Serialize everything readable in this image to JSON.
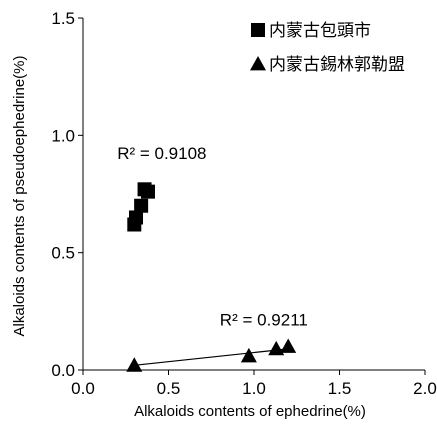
{
  "chart_data": {
    "type": "scatter",
    "xlabel": "Alkaloids contents of ephedrine(%)",
    "ylabel": "Alkaloids contents of pseudoephedrine(%)",
    "xlim": [
      0,
      2.0
    ],
    "ylim": [
      0,
      1.5
    ],
    "xticks": [
      "0.0",
      "0.5",
      "1.0",
      "1.5",
      "2.0"
    ],
    "yticks": [
      "0.0",
      "0.5",
      "1.0",
      "1.5"
    ],
    "grid": false,
    "legend_position": "top-right",
    "series": [
      {
        "name": "内蒙古包頭市",
        "marker": "square",
        "color": "#000000",
        "points": [
          {
            "x": 0.3,
            "y": 0.62
          },
          {
            "x": 0.31,
            "y": 0.65
          },
          {
            "x": 0.34,
            "y": 0.7
          },
          {
            "x": 0.36,
            "y": 0.77
          },
          {
            "x": 0.38,
            "y": 0.76
          }
        ],
        "r2_label": "R² = 0.9108",
        "r2_anchor": {
          "x": 0.2,
          "y": 0.9
        },
        "trendline": false
      },
      {
        "name": "内蒙古錫林郭勒盟",
        "marker": "triangle",
        "color": "#000000",
        "points": [
          {
            "x": 0.3,
            "y": 0.02
          },
          {
            "x": 0.97,
            "y": 0.06
          },
          {
            "x": 1.13,
            "y": 0.09
          },
          {
            "x": 1.2,
            "y": 0.1
          }
        ],
        "r2_label": "R² = 0.9211",
        "r2_anchor": {
          "x": 0.8,
          "y": 0.19
        },
        "trendline": {
          "from": {
            "x": 0.3,
            "y": 0.02
          },
          "to": {
            "x": 1.2,
            "y": 0.09
          }
        }
      }
    ]
  }
}
